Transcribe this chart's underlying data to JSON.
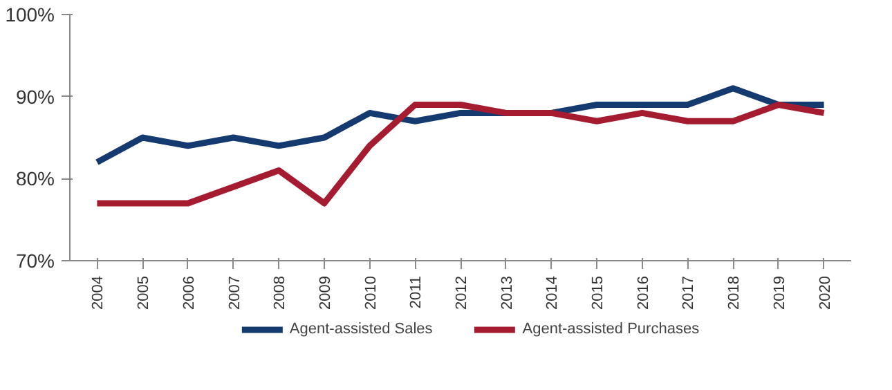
{
  "chart_data": {
    "type": "line",
    "categories": [
      "2004",
      "2005",
      "2006",
      "2007",
      "2008",
      "2009",
      "2010",
      "2011",
      "2012",
      "2013",
      "2014",
      "2015",
      "2016",
      "2017",
      "2018",
      "2019",
      "2020"
    ],
    "series": [
      {
        "name": "Agent-assisted Sales",
        "color": "#153a6f",
        "values": [
          82,
          85,
          84,
          85,
          84,
          85,
          88,
          87,
          88,
          88,
          88,
          89,
          89,
          89,
          91,
          89,
          89
        ]
      },
      {
        "name": "Agent-assisted Purchases",
        "color": "#a51c30",
        "values": [
          77,
          77,
          77,
          79,
          81,
          77,
          84,
          89,
          89,
          88,
          88,
          87,
          88,
          87,
          87,
          89,
          88
        ]
      }
    ],
    "ylim": [
      70,
      100
    ],
    "yticks": [
      {
        "value": 70,
        "label": "70%"
      },
      {
        "value": 80,
        "label": "80%"
      },
      {
        "value": 90,
        "label": "90%"
      },
      {
        "value": 100,
        "label": "100%"
      }
    ],
    "grid": false,
    "legend": "bottom",
    "marker": "none",
    "line_style": "solid"
  }
}
